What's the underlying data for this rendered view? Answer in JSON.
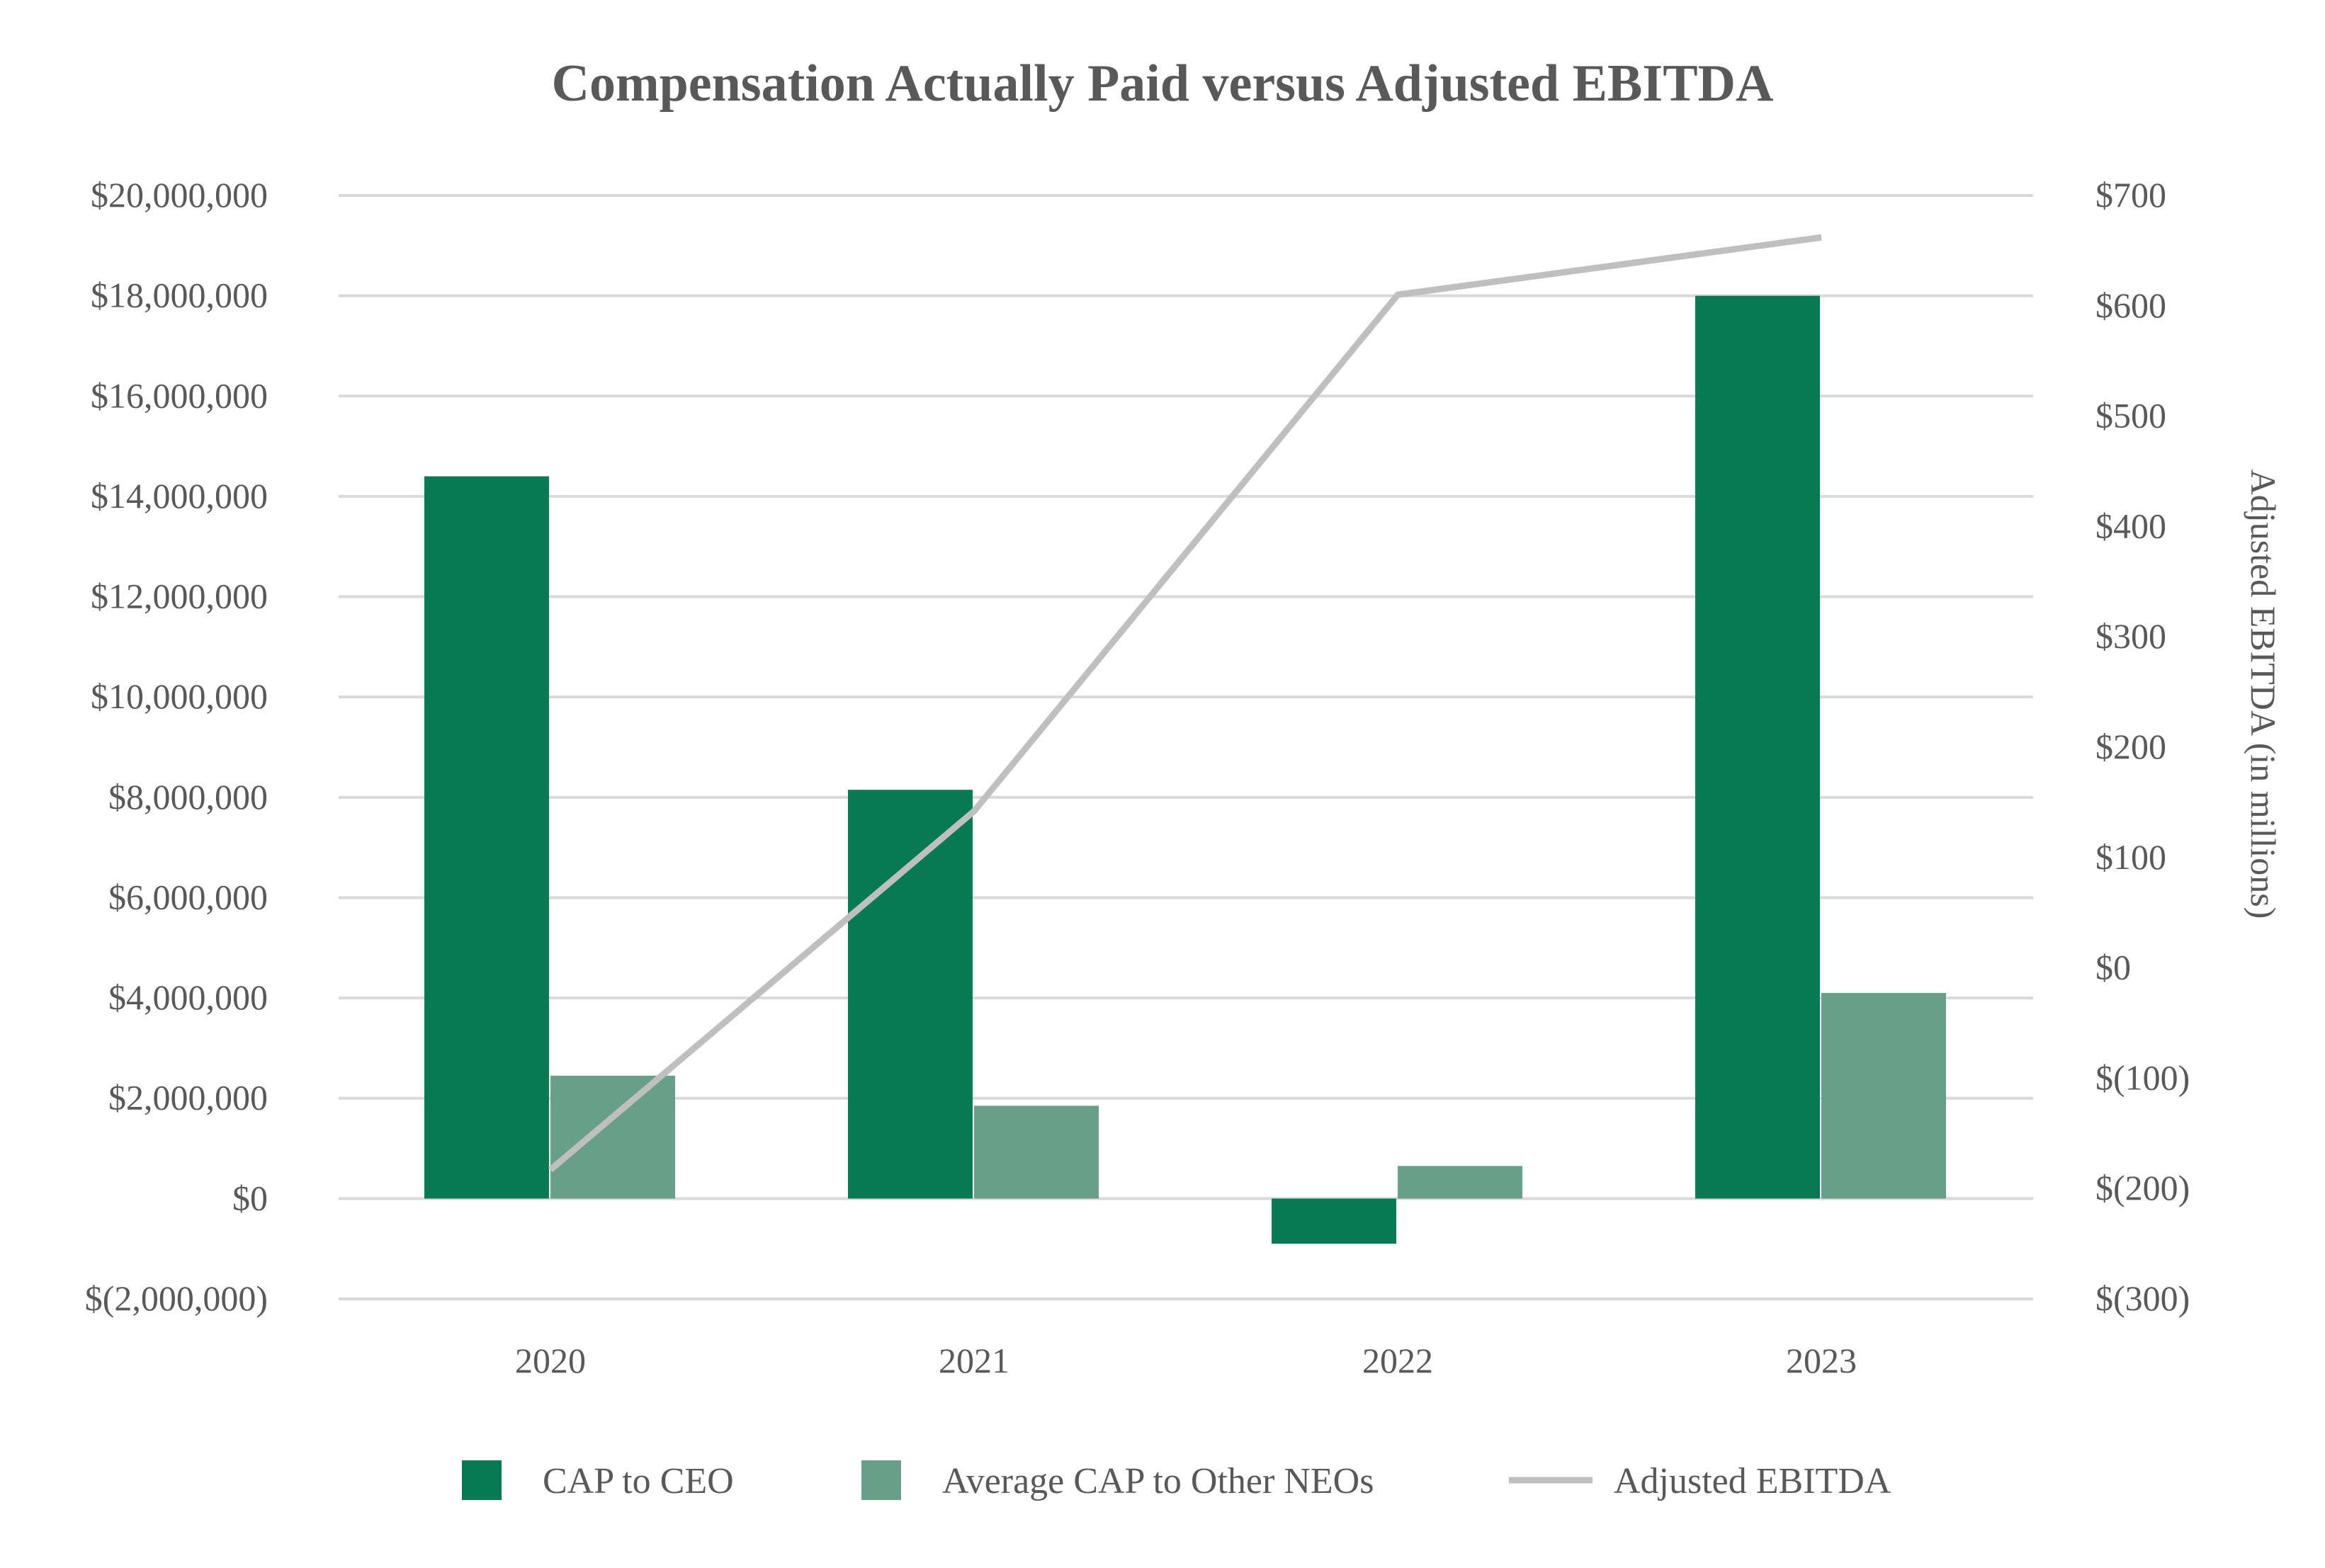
{
  "chart_data": {
    "type": "bar",
    "title": "Compensation Actually Paid versus Adjusted EBITDA",
    "categories": [
      "2020",
      "2021",
      "2022",
      "2023"
    ],
    "series": [
      {
        "name": "CAP to CEO",
        "type": "bar",
        "axis": "left",
        "color": "#077A54",
        "values": [
          14400000,
          8150000,
          -900000,
          18000000
        ]
      },
      {
        "name": "Average CAP to Other NEOs",
        "type": "bar",
        "axis": "left",
        "color": "#679F89",
        "values": [
          2450000,
          1850000,
          650000,
          4100000
        ]
      },
      {
        "name": "Adjusted EBITDA",
        "type": "line",
        "axis": "right",
        "color": "#BFBFBF",
        "values": [
          -183,
          142,
          610,
          662
        ]
      }
    ],
    "left_axis": {
      "ylim": [
        -2000000,
        20000000
      ],
      "ticks": [
        20000000,
        18000000,
        16000000,
        14000000,
        12000000,
        10000000,
        8000000,
        6000000,
        4000000,
        2000000,
        0,
        -2000000
      ],
      "tick_labels": [
        "$20,000,000",
        "$18,000,000",
        "$16,000,000",
        "$14,000,000",
        "$12,000,000",
        "$10,000,000",
        "$8,000,000",
        "$6,000,000",
        "$4,000,000",
        "$2,000,000",
        "$0",
        "$(2,000,000)"
      ]
    },
    "right_axis": {
      "label": "Adjusted EBITDA (in millions)",
      "ylim": [
        -300,
        700
      ],
      "ticks": [
        700,
        600,
        500,
        400,
        300,
        200,
        100,
        0,
        -100,
        -200,
        -300
      ],
      "tick_labels": [
        "$700",
        "$600",
        "$500",
        "$400",
        "$300",
        "$200",
        "$100",
        "$0",
        "$(100)",
        "$(200)",
        "$(300)"
      ]
    },
    "grid": true,
    "legend_position": "bottom",
    "legend": [
      "CAP to CEO",
      "Average CAP to Other NEOs",
      "Adjusted EBITDA"
    ]
  }
}
